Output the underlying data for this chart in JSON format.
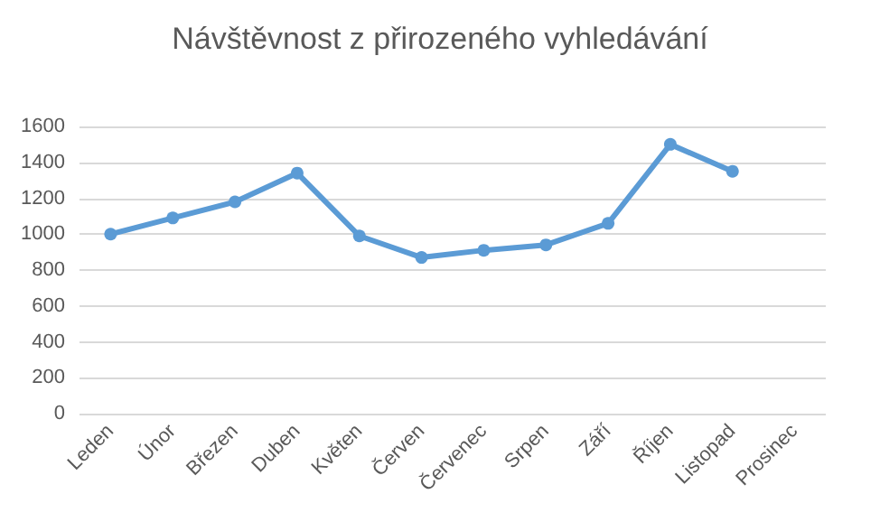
{
  "chart_data": {
    "type": "line",
    "title": "Návštěvnost z přirozeného vyhledávání",
    "categories": [
      "Leden",
      "Únor",
      "Březen",
      "Duben",
      "Květen",
      "Červen",
      "Červenec",
      "Srpen",
      "Září",
      "Říjen",
      "Listopad",
      "Prosinec"
    ],
    "series": [
      {
        "color": "#5b9bd5",
        "values": [
          1000,
          1090,
          1180,
          1340,
          990,
          870,
          910,
          940,
          1060,
          1500,
          1350,
          null
        ]
      }
    ],
    "ylim": [
      0,
      1600
    ],
    "yticks": [
      0,
      200,
      400,
      600,
      800,
      1000,
      1200,
      1400,
      1600
    ],
    "grid": "y",
    "marker": "circle",
    "line_style": "solid"
  }
}
